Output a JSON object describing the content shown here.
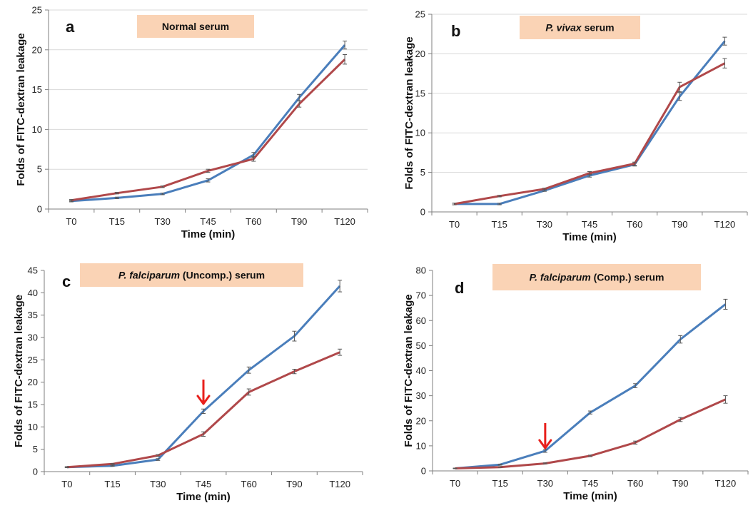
{
  "colors": {
    "series_a": "#4a7ebb",
    "series_b": "#b0484a",
    "title_box": "#fad3b5",
    "arrow": "#e8201c",
    "axis": "#7f7f7f",
    "grid": "#d9d9d9"
  },
  "chart_data": [
    {
      "type": "line",
      "panel_label": "a",
      "title_runs": [
        {
          "text": "Normal serum",
          "italic": false
        }
      ],
      "xlabel": "Time  (min)",
      "ylabel": "Folds of FITC-dextran leakage",
      "categories": [
        "T0",
        "T15",
        "T30",
        "T45",
        "T60",
        "T90",
        "T120"
      ],
      "ylim": [
        0,
        25
      ],
      "yticks": [
        0,
        5,
        10,
        15,
        20,
        25
      ],
      "grid": true,
      "legend": "none",
      "series": [
        {
          "color": "#4a7ebb",
          "values": [
            1.0,
            1.4,
            1.9,
            3.6,
            6.8,
            14.0,
            20.6
          ],
          "errors": [
            0.1,
            0.1,
            0.1,
            0.2,
            0.3,
            0.4,
            0.5
          ]
        },
        {
          "color": "#b0484a",
          "values": [
            1.1,
            2.0,
            2.8,
            4.8,
            6.3,
            13.2,
            18.8
          ],
          "errors": [
            0.1,
            0.1,
            0.1,
            0.2,
            0.3,
            0.4,
            0.6
          ]
        }
      ],
      "arrows": []
    },
    {
      "type": "line",
      "panel_label": "b",
      "title_runs": [
        {
          "text": "P. vivax",
          "italic": true
        },
        {
          "text": " serum",
          "italic": false
        }
      ],
      "xlabel": "Time  (min)",
      "ylabel": "Folds of FITC-dextran leakage",
      "categories": [
        "T0",
        "T15",
        "T30",
        "T45",
        "T60",
        "T90",
        "T120"
      ],
      "ylim": [
        0,
        25
      ],
      "yticks": [
        0,
        5,
        10,
        15,
        20,
        25
      ],
      "grid": true,
      "legend": "none",
      "series": [
        {
          "color": "#4a7ebb",
          "values": [
            1.0,
            1.0,
            2.7,
            4.6,
            6.0,
            14.6,
            21.6
          ],
          "errors": [
            0.1,
            0.1,
            0.1,
            0.2,
            0.2,
            0.5,
            0.5
          ]
        },
        {
          "color": "#b0484a",
          "values": [
            1.0,
            2.0,
            2.9,
            4.9,
            6.1,
            15.8,
            18.8
          ],
          "errors": [
            0.1,
            0.1,
            0.1,
            0.2,
            0.2,
            0.6,
            0.6
          ]
        }
      ],
      "arrows": []
    },
    {
      "type": "line",
      "panel_label": "c",
      "title_runs": [
        {
          "text": "P. falciparum",
          "italic": true
        },
        {
          "text": " (Uncomp.) serum",
          "italic": false
        }
      ],
      "xlabel": "Time  (min)",
      "ylabel": "Folds of FITC-dextran leakage",
      "categories": [
        "T0",
        "T15",
        "T30",
        "T45",
        "T60",
        "T90",
        "T120"
      ],
      "ylim": [
        0,
        45
      ],
      "yticks": [
        0,
        5,
        10,
        15,
        20,
        25,
        30,
        35,
        40,
        45
      ],
      "grid": false,
      "legend": "none",
      "series": [
        {
          "color": "#4a7ebb",
          "values": [
            1.0,
            1.3,
            2.7,
            13.5,
            22.7,
            30.3,
            41.5
          ],
          "errors": [
            0.1,
            0.1,
            0.2,
            0.5,
            0.7,
            1.1,
            1.3
          ]
        },
        {
          "color": "#b0484a",
          "values": [
            1.0,
            1.7,
            3.6,
            8.4,
            17.8,
            22.4,
            26.7
          ],
          "errors": [
            0.1,
            0.1,
            0.2,
            0.5,
            0.7,
            0.5,
            0.7
          ]
        }
      ],
      "arrows": [
        {
          "category": "T45"
        }
      ]
    },
    {
      "type": "line",
      "panel_label": "d",
      "title_runs": [
        {
          "text": "P. falciparum",
          "italic": true
        },
        {
          "text": " (Comp.) serum",
          "italic": false
        }
      ],
      "xlabel": "Time  (min)",
      "ylabel": "Folds of FITC-dextran leakage",
      "categories": [
        "T0",
        "T15",
        "T30",
        "T45",
        "T60",
        "T90",
        "T120"
      ],
      "ylim": [
        0,
        80
      ],
      "yticks": [
        0,
        10,
        20,
        30,
        40,
        50,
        60,
        70,
        80
      ],
      "grid": false,
      "legend": "none",
      "series": [
        {
          "color": "#4a7ebb",
          "values": [
            1.0,
            2.5,
            8.0,
            23.3,
            34.0,
            52.5,
            66.5
          ],
          "errors": [
            0.1,
            0.2,
            0.6,
            0.6,
            0.8,
            1.5,
            2.0
          ]
        },
        {
          "color": "#b0484a",
          "values": [
            1.0,
            1.5,
            3.0,
            6.0,
            11.3,
            20.5,
            28.5
          ],
          "errors": [
            0.1,
            0.1,
            0.2,
            0.3,
            0.6,
            0.8,
            1.5
          ]
        }
      ],
      "arrows": [
        {
          "category": "T30"
        }
      ]
    }
  ]
}
